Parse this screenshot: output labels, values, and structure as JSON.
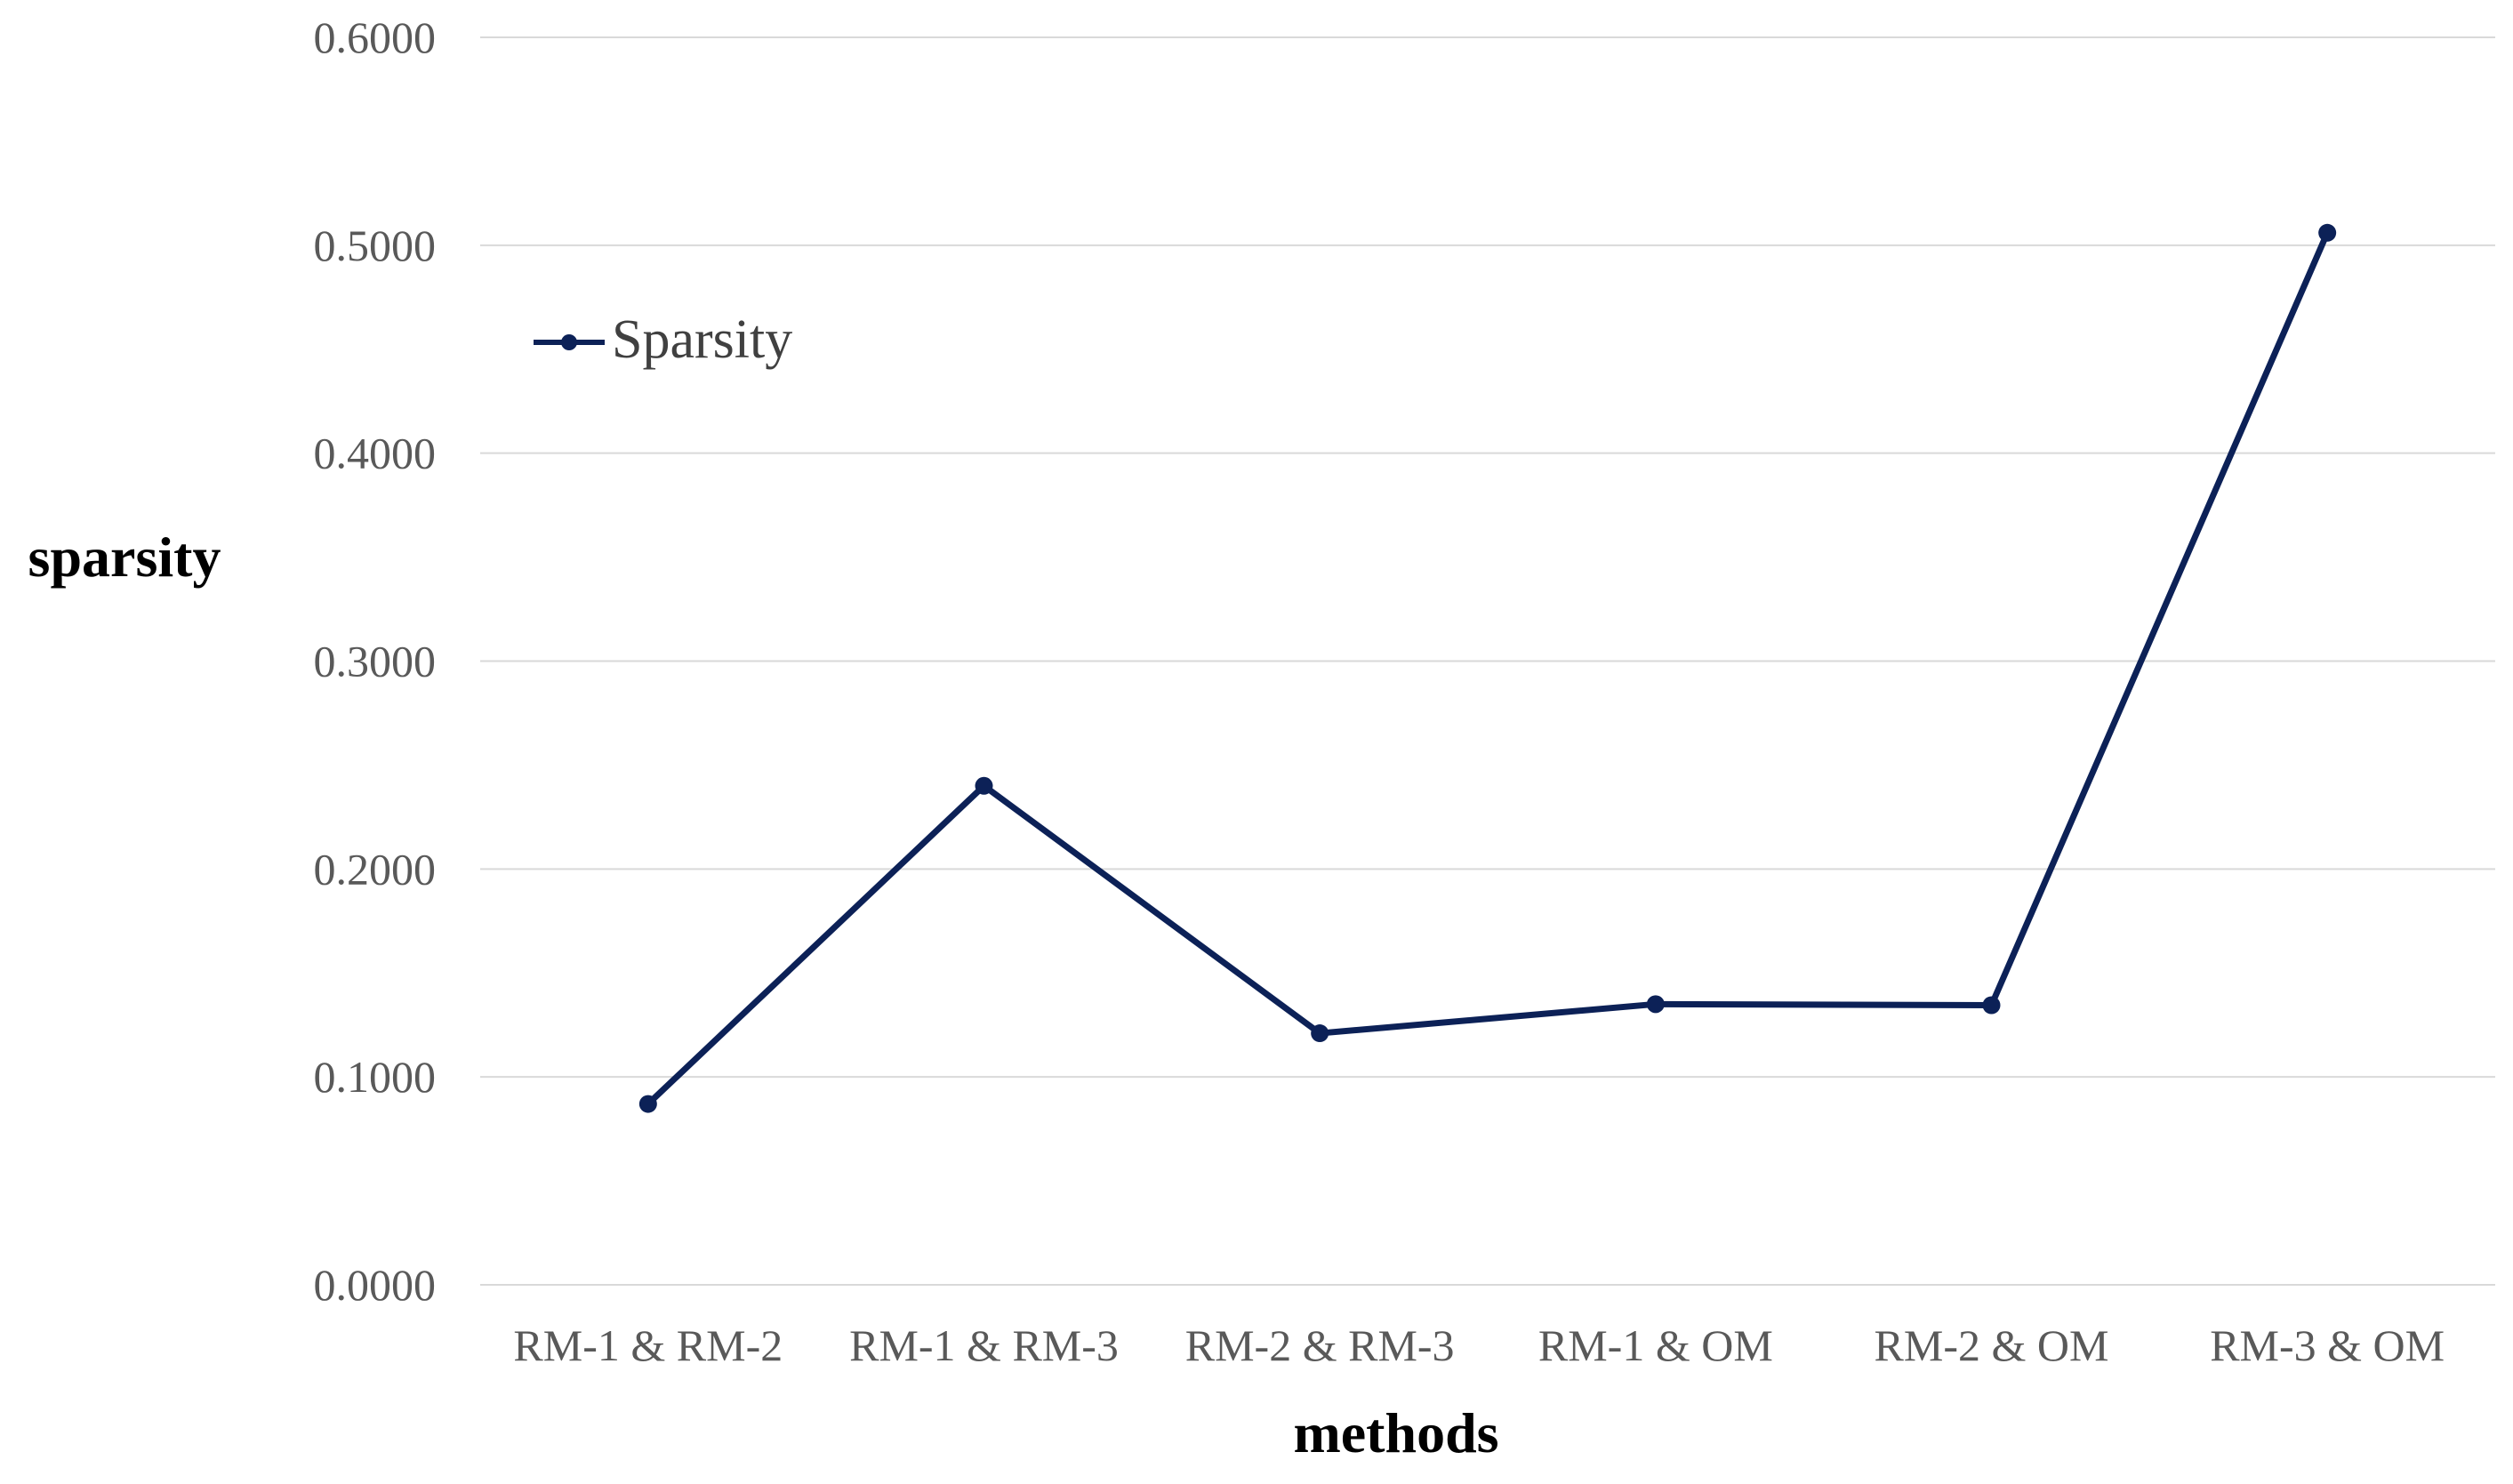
{
  "chart_data": {
    "type": "line",
    "title": "",
    "xlabel": "methods",
    "ylabel": "sparsity",
    "categories": [
      "RM-1 & RM-2",
      "RM-1 & RM-3",
      "RM-2 & RM-3",
      "RM-1 & OM",
      "RM-2 & OM",
      "RM-3 & OM"
    ],
    "series": [
      {
        "name": "Sparsity",
        "values": [
          0.087,
          0.24,
          0.121,
          0.135,
          0.1345,
          0.506
        ],
        "color": "#0c2157"
      }
    ],
    "ylim": [
      0,
      0.6
    ],
    "yticks": [
      0,
      0.1,
      0.2,
      0.3,
      0.4,
      0.5,
      0.6
    ],
    "ytick_labels": [
      "0.0000",
      "0.1000",
      "0.2000",
      "0.3000",
      "0.4000",
      "0.5000",
      "0.6000"
    ],
    "grid": true,
    "legend_position": "top-left",
    "gridline_color": "#d9d9d9"
  }
}
